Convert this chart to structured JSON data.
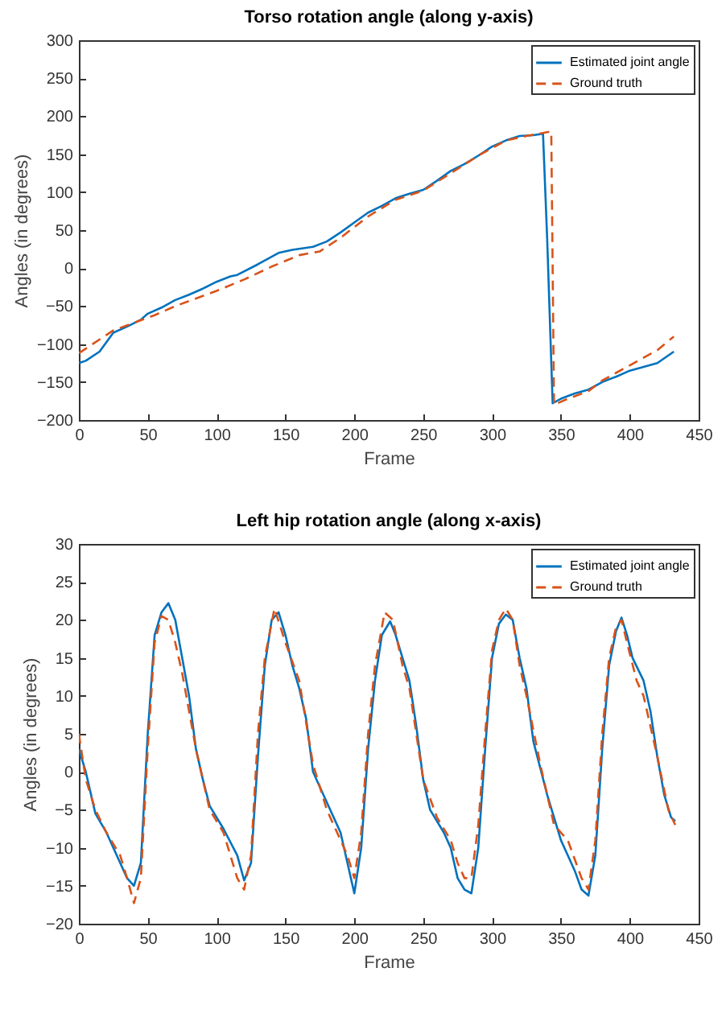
{
  "chart_data": [
    {
      "type": "line",
      "title": "Torso rotation angle (along y-axis)",
      "xlabel": "Frame",
      "ylabel": "Angles (in degrees)",
      "xlim": [
        0,
        450
      ],
      "xticks": [
        0,
        50,
        100,
        150,
        200,
        250,
        300,
        350,
        400,
        450
      ],
      "ylim": [
        -200,
        300
      ],
      "yticks": [
        -200,
        -150,
        -100,
        -50,
        0,
        50,
        100,
        150,
        200,
        250,
        300
      ],
      "grid": false,
      "legend": "top right",
      "series": [
        {
          "name": "Estimated joint angle",
          "color": "#0072bd",
          "line_style": "solid",
          "x": [
            0,
            5,
            15,
            25,
            35,
            45,
            50,
            60,
            70,
            80,
            90,
            100,
            110,
            115,
            130,
            145,
            155,
            170,
            180,
            190,
            200,
            210,
            220,
            230,
            240,
            250,
            260,
            270,
            280,
            290,
            300,
            310,
            320,
            330,
            337,
            340,
            344,
            350,
            360,
            370,
            380,
            390,
            400,
            410,
            420,
            432
          ],
          "values": [
            -125,
            -122,
            -110,
            -85,
            -77,
            -68,
            -60,
            -52,
            -42,
            -35,
            -27,
            -18,
            -11,
            -9,
            5,
            20,
            24,
            28,
            35,
            47,
            60,
            73,
            82,
            92,
            98,
            103,
            115,
            128,
            137,
            148,
            160,
            168,
            174,
            175,
            177,
            40,
            -178,
            -172,
            -165,
            -160,
            -150,
            -143,
            -135,
            -130,
            -125,
            -110
          ]
        },
        {
          "name": "Ground truth",
          "color": "#d95319",
          "line_style": "dashed",
          "x": [
            0,
            10,
            25,
            40,
            55,
            70,
            85,
            100,
            120,
            140,
            160,
            175,
            190,
            210,
            230,
            250,
            270,
            290,
            310,
            325,
            337,
            343,
            345,
            355,
            370,
            380,
            400,
            420,
            432
          ],
          "values": [
            -112,
            -100,
            -82,
            -72,
            -62,
            -50,
            -40,
            -30,
            -15,
            2,
            17,
            22,
            40,
            68,
            90,
            102,
            125,
            148,
            168,
            174,
            178,
            180,
            -180,
            -172,
            -162,
            -148,
            -128,
            -108,
            -90
          ]
        }
      ]
    },
    {
      "type": "line",
      "title": "Left hip rotation angle (along x-axis)",
      "xlabel": "Frame",
      "ylabel": "Angles (in degrees)",
      "xlim": [
        0,
        450
      ],
      "xticks": [
        0,
        50,
        100,
        150,
        200,
        250,
        300,
        350,
        400,
        450
      ],
      "ylim": [
        -20,
        30
      ],
      "yticks": [
        -20,
        -15,
        -10,
        -5,
        0,
        5,
        10,
        15,
        20,
        25,
        30
      ],
      "grid": false,
      "legend": "top right",
      "series": [
        {
          "name": "Estimated joint angle",
          "color": "#0072bd",
          "line_style": "solid",
          "x": [
            0,
            5,
            12,
            20,
            30,
            35,
            40,
            45,
            50,
            55,
            60,
            65,
            70,
            75,
            80,
            85,
            90,
            95,
            105,
            115,
            120,
            125,
            130,
            135,
            140,
            145,
            150,
            155,
            160,
            165,
            170,
            180,
            190,
            195,
            200,
            205,
            210,
            215,
            220,
            226,
            230,
            235,
            240,
            245,
            250,
            255,
            265,
            270,
            275,
            280,
            285,
            290,
            295,
            300,
            305,
            310,
            315,
            320,
            325,
            330,
            340,
            345,
            350,
            355,
            360,
            365,
            370,
            375,
            380,
            385,
            390,
            394,
            398,
            402,
            410,
            415,
            420,
            425,
            430,
            433
          ],
          "values": [
            3,
            0,
            -5.5,
            -8,
            -12,
            -14,
            -15,
            -12,
            5,
            18,
            21,
            22.2,
            20,
            15,
            10,
            3,
            -1,
            -4.5,
            -7.5,
            -11,
            -14.3,
            -12,
            2,
            14,
            20,
            21,
            18,
            14,
            11,
            7,
            0,
            -4,
            -8,
            -12,
            -16,
            -10,
            3,
            12,
            18,
            19.8,
            18,
            15,
            12,
            6,
            -1,
            -5,
            -8,
            -10,
            -14,
            -15.5,
            -16,
            -10,
            3,
            15,
            19.5,
            20.7,
            20,
            15,
            11,
            4,
            -3,
            -6,
            -9,
            -11,
            -13,
            -15.5,
            -16.3,
            -11,
            3,
            14,
            18.5,
            20.3,
            18,
            15,
            12,
            8,
            2,
            -3,
            -6,
            -6.5
          ]
        },
        {
          "name": "Ground truth",
          "color": "#d95319",
          "line_style": "dashed",
          "x": [
            0,
            5,
            12,
            20,
            30,
            35,
            40,
            45,
            50,
            55,
            60,
            65,
            70,
            75,
            80,
            85,
            95,
            105,
            115,
            120,
            125,
            130,
            135,
            142,
            150,
            160,
            170,
            180,
            190,
            195,
            200,
            205,
            210,
            215,
            222,
            228,
            235,
            240,
            250,
            260,
            270,
            275,
            280,
            285,
            290,
            295,
            300,
            305,
            310,
            315,
            320,
            325,
            335,
            345,
            355,
            365,
            370,
            375,
            380,
            385,
            390,
            394,
            398,
            405,
            410,
            420,
            428,
            433
          ],
          "values": [
            5,
            -1,
            -5,
            -8,
            -11,
            -14,
            -17.3,
            -14,
            3,
            17,
            20.5,
            20,
            17,
            13,
            8,
            3,
            -5,
            -8,
            -14,
            -15.5,
            -11,
            5,
            15,
            21.5,
            17,
            12,
            1,
            -5,
            -9,
            -11,
            -14,
            -8,
            5,
            14,
            21,
            20,
            14,
            11,
            -1,
            -6,
            -9,
            -12,
            -14,
            -14,
            -7,
            5,
            16,
            20,
            21.5,
            20,
            14,
            10,
            1,
            -7,
            -9,
            -14,
            -15.5,
            -9,
            5,
            15,
            19,
            20,
            17,
            12,
            10,
            2,
            -5,
            -7
          ]
        }
      ]
    }
  ]
}
